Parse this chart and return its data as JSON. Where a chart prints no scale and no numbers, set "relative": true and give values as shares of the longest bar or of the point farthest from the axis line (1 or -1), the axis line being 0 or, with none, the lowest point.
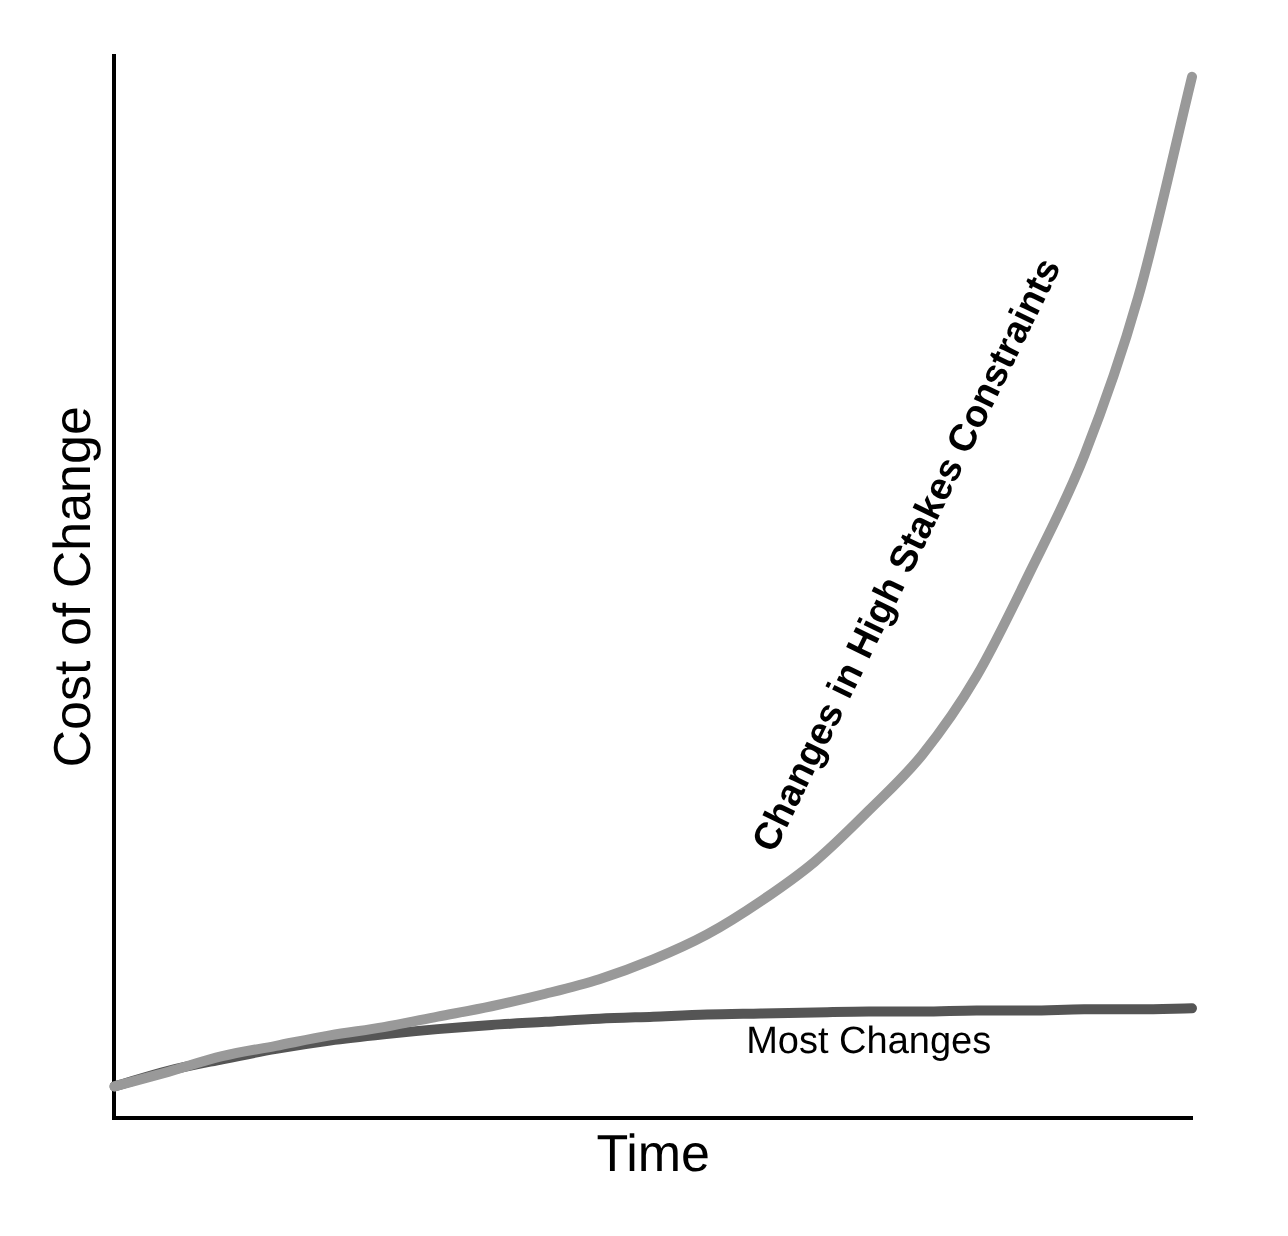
{
  "chart_data": {
    "type": "line",
    "xlabel": "Time",
    "ylabel": "Cost of Change",
    "relative": true,
    "grid": false,
    "legend": false,
    "marker": "none",
    "categories": [
      null,
      null,
      null,
      null,
      null,
      null,
      null,
      null,
      null,
      null,
      null,
      null,
      null,
      null,
      null,
      null,
      null,
      null,
      null,
      null,
      null
    ],
    "series": [
      {
        "name": "Changes in High Stakes Constraints",
        "color": "#999999",
        "values": [
          0.03,
          0.044,
          0.059,
          0.069,
          0.079,
          0.087,
          0.097,
          0.107,
          0.119,
          0.133,
          0.152,
          0.176,
          0.208,
          0.246,
          0.295,
          0.349,
          0.424,
          0.525,
          0.636,
          0.788,
          1
        ]
      },
      {
        "name": "Most Changes",
        "color": "#555555",
        "values": [
          0.03,
          0.045,
          0.056,
          0.066,
          0.074,
          0.08,
          0.085,
          0.089,
          0.092,
          0.095,
          0.097,
          0.099,
          0.1,
          0.101,
          0.102,
          0.102,
          0.103,
          0.103,
          0.104,
          0.104,
          0.105
        ]
      }
    ]
  }
}
